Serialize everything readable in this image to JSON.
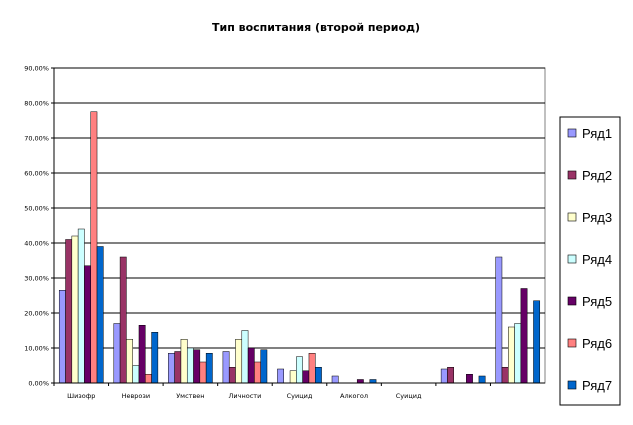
{
  "chart_data": {
    "type": "bar",
    "title": "Тип воспитания (второй период)",
    "ylim": [
      0,
      0.9
    ],
    "y_ticks": [
      "0,00%",
      "10,00%",
      "20,00%",
      "30,00%",
      "40,00%",
      "50,00%",
      "60,00%",
      "70,00%",
      "80,00%",
      "90,00%"
    ],
    "grid": true,
    "legend_position": "right",
    "categories": [
      "Шизофр",
      "Неврози",
      "Умствен",
      "Личности",
      "Суицид",
      "Алкогол",
      "Суицид",
      "",
      ""
    ],
    "series": [
      {
        "name": "Ряд1",
        "color": "#9999ff",
        "values": [
          0.265,
          0.17,
          0.085,
          0.09,
          0.04,
          0.02,
          0,
          0.04,
          0.36
        ]
      },
      {
        "name": "Ряд2",
        "color": "#993366",
        "values": [
          0.41,
          0.36,
          0.09,
          0.045,
          0,
          0,
          0,
          0.045,
          0.045
        ]
      },
      {
        "name": "Ряд3",
        "color": "#ffffcc",
        "values": [
          0.42,
          0.125,
          0.125,
          0.125,
          0.035,
          0,
          0,
          0,
          0.16
        ]
      },
      {
        "name": "Ряд4",
        "color": "#ccffff",
        "values": [
          0.44,
          0.05,
          0.1,
          0.15,
          0.075,
          0,
          0,
          0,
          0.17
        ]
      },
      {
        "name": "Ряд5",
        "color": "#660066",
        "values": [
          0.335,
          0.165,
          0.095,
          0.1,
          0.035,
          0.01,
          0,
          0.025,
          0.27
        ]
      },
      {
        "name": "Ряд6",
        "color": "#ff8080",
        "values": [
          0.775,
          0.025,
          0.06,
          0.06,
          0.085,
          0,
          0,
          0,
          0
        ]
      },
      {
        "name": "Ряд7",
        "color": "#0066cc",
        "values": [
          0.39,
          0.145,
          0.085,
          0.095,
          0.045,
          0.01,
          0,
          0.02,
          0.235
        ]
      }
    ]
  }
}
